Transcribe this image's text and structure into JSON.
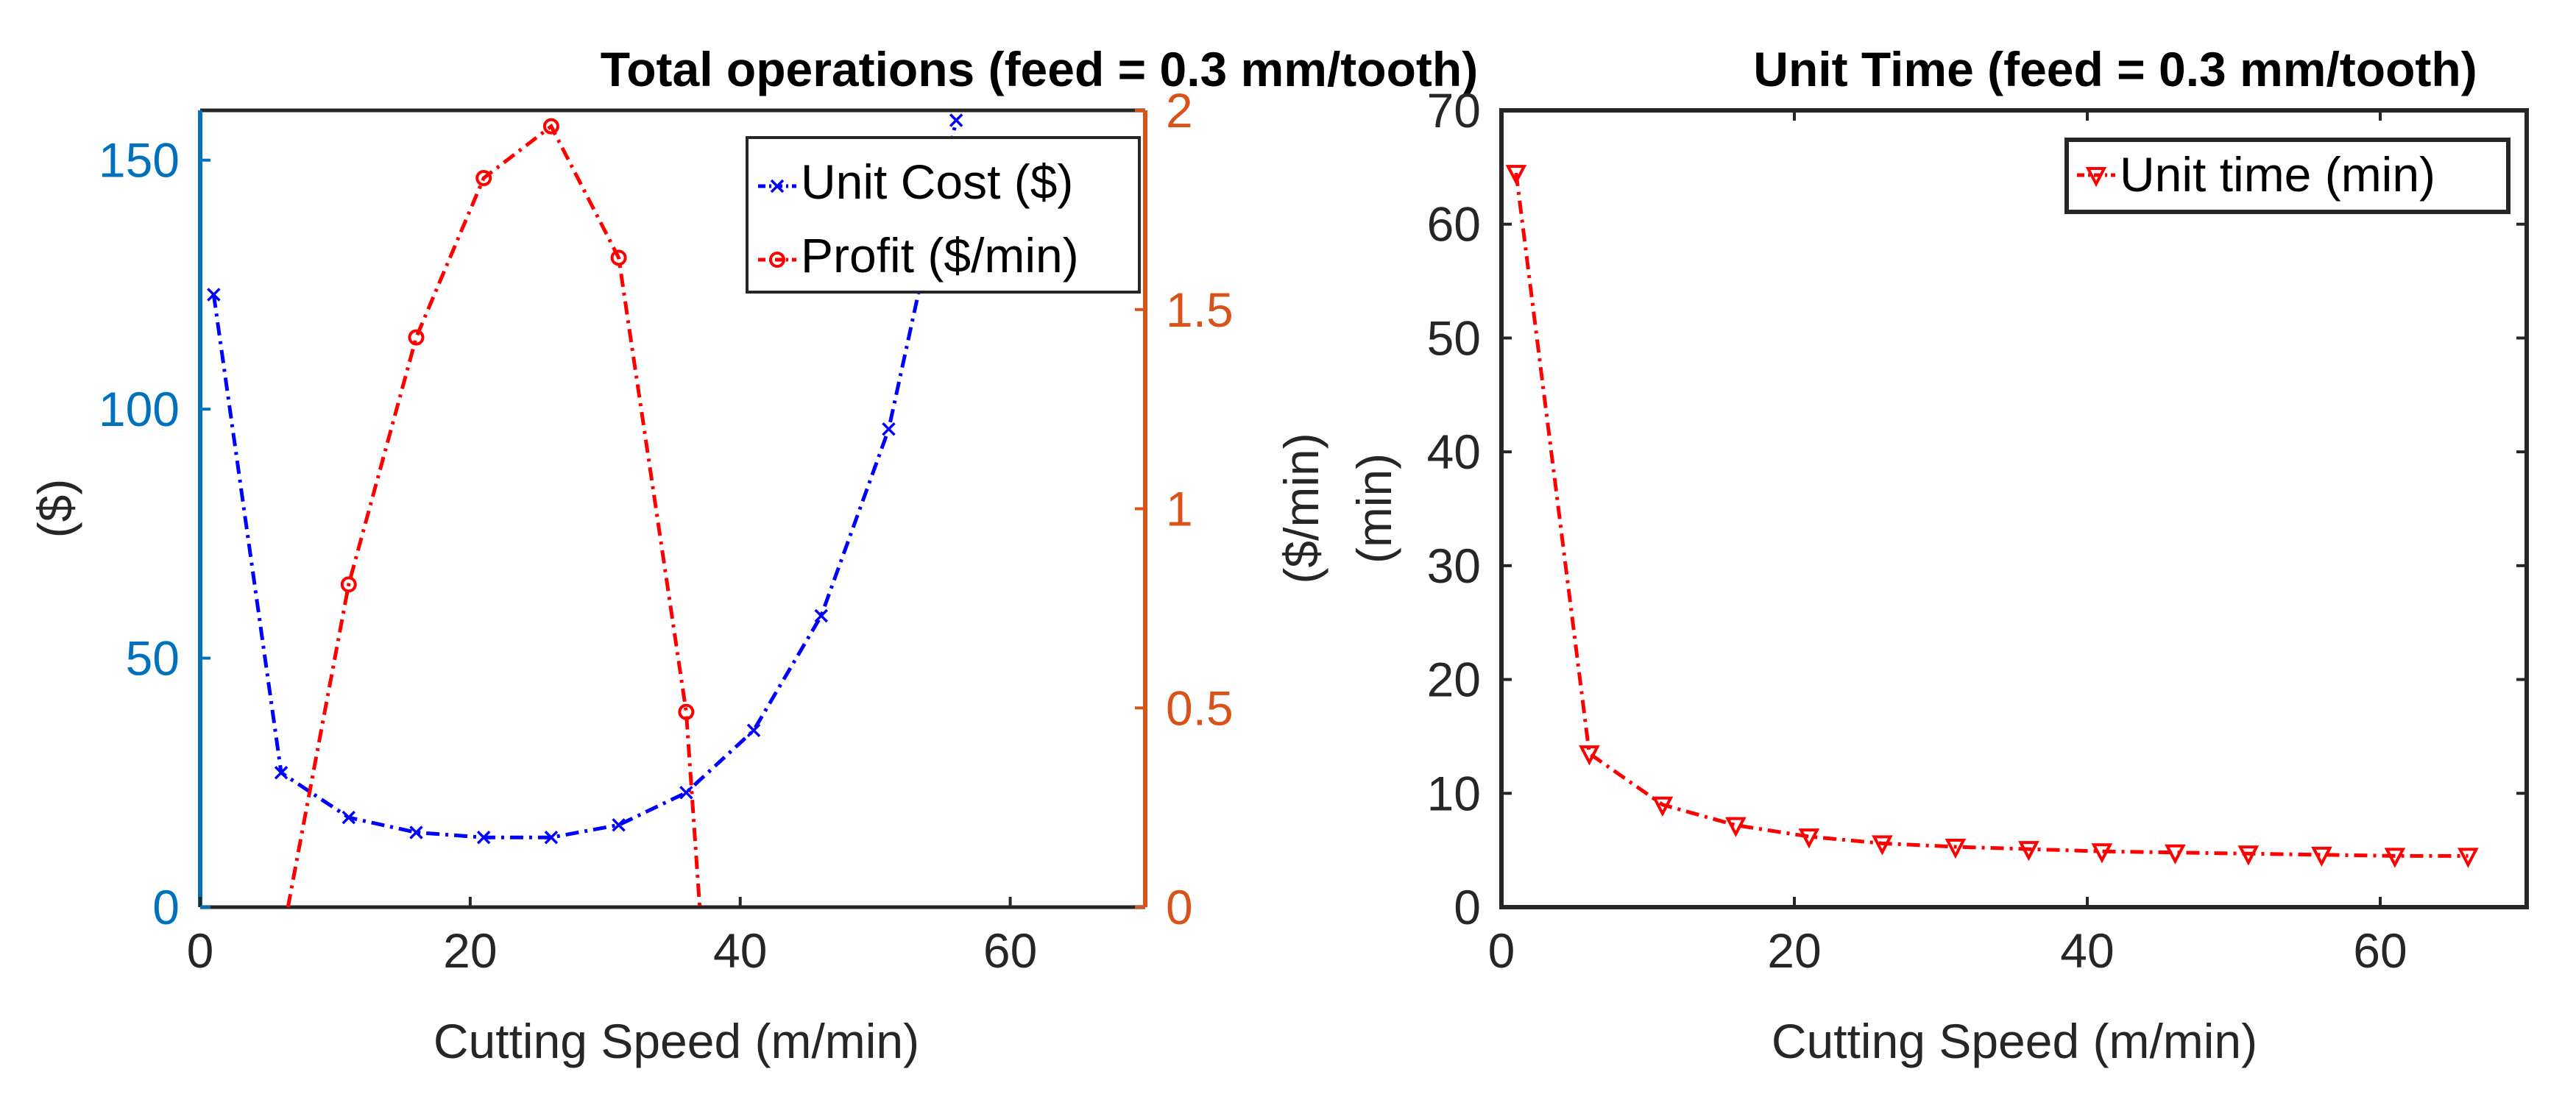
{
  "chart_data": [
    {
      "type": "line",
      "title": "Total operations (feed = 0.3 mm/tooth)",
      "xlabel": "Cutting Speed (m/min)",
      "ylabel_left": "($)",
      "ylabel_right": "($/min)",
      "xlim": [
        0,
        70
      ],
      "ylim_left": [
        0,
        160
      ],
      "ylim_right": [
        0,
        2
      ],
      "xticks": [
        "0",
        "20",
        "40",
        "60"
      ],
      "yticks_left": [
        "0",
        "50",
        "100",
        "150"
      ],
      "yticks_right": [
        "0",
        "0.5",
        "1",
        "1.5",
        "2"
      ],
      "left_axis_color": "#0072BD",
      "right_axis_color": "#D95319",
      "legend_position": "top-right",
      "series": [
        {
          "name": "Unit Cost ($)",
          "axis": "left",
          "color": "#0000FF",
          "marker": "x",
          "x": [
            1,
            6,
            11,
            16,
            21,
            26,
            31,
            36,
            41,
            46,
            51,
            56
          ],
          "y": [
            123,
            27,
            18,
            15,
            14,
            14,
            16.5,
            23,
            35.5,
            58.5,
            96,
            158
          ]
        },
        {
          "name": "Profit ($/min)",
          "axis": "right",
          "color": "#FF0000",
          "marker": "o",
          "x": [
            6.5,
            11,
            16,
            21,
            26,
            31,
            36,
            37
          ],
          "y": [
            0,
            0.81,
            1.43,
            1.83,
            1.96,
            1.63,
            0.49,
            0
          ]
        }
      ]
    },
    {
      "type": "line",
      "title": "Unit Time (feed = 0.3 mm/tooth)",
      "xlabel": "Cutting Speed (m/min)",
      "ylabel": "(min)",
      "xlim": [
        0,
        70
      ],
      "ylim": [
        0,
        70
      ],
      "xticks": [
        "0",
        "20",
        "40",
        "60"
      ],
      "yticks": [
        "0",
        "10",
        "20",
        "30",
        "40",
        "50",
        "60",
        "70"
      ],
      "legend_position": "top-right",
      "series": [
        {
          "name": "Unit time (min)",
          "color": "#FF0000",
          "marker": "triangle-down",
          "x": [
            1,
            6,
            11,
            16,
            21,
            26,
            31,
            36,
            41,
            46,
            51,
            56,
            61,
            66
          ],
          "y": [
            64.5,
            13.5,
            9,
            7.2,
            6.2,
            5.6,
            5.3,
            5.1,
            4.9,
            4.8,
            4.7,
            4.6,
            4.5,
            4.5
          ]
        }
      ]
    }
  ]
}
